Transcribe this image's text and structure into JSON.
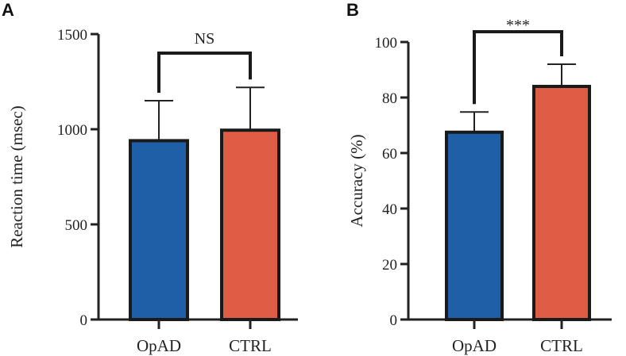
{
  "chart_data": [
    {
      "panel": "A",
      "type": "bar",
      "categories": [
        "OpAD",
        "CTRL"
      ],
      "values": [
        940,
        995
      ],
      "errors": [
        210,
        225
      ],
      "ylabel": "Reaction time (msec)",
      "xlabel": "",
      "ylim": [
        0,
        1500
      ],
      "yticks": [
        0,
        500,
        1000,
        1500
      ],
      "significance": "NS",
      "colors": [
        "#1f5fa8",
        "#e05d45"
      ],
      "grid": false
    },
    {
      "panel": "B",
      "type": "bar",
      "categories": [
        "OpAD",
        "CTRL"
      ],
      "values": [
        67.5,
        84
      ],
      "errors": [
        7.3,
        8
      ],
      "ylabel": "Accuracy (%)",
      "xlabel": "",
      "ylim": [
        0,
        100
      ],
      "yticks": [
        0,
        20,
        40,
        60,
        80,
        100
      ],
      "significance": "***",
      "colors": [
        "#1f5fa8",
        "#e05d45"
      ],
      "grid": false
    }
  ]
}
